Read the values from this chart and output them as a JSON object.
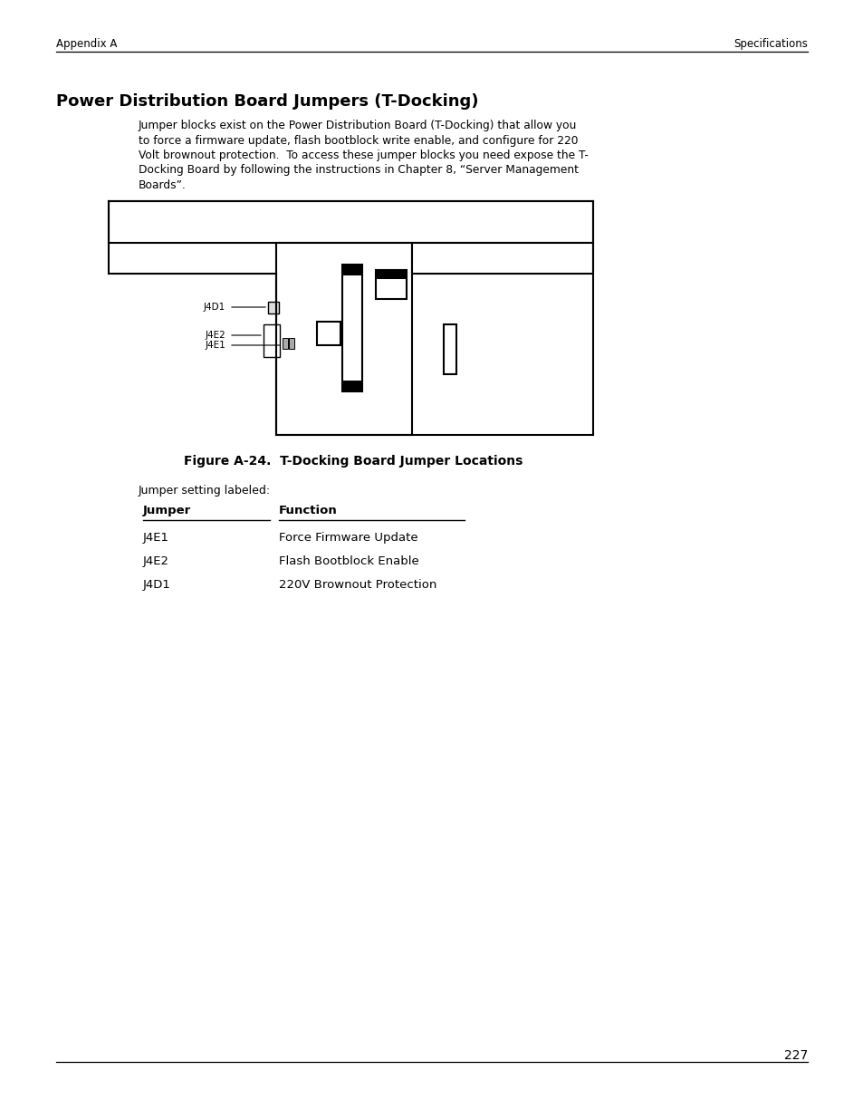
{
  "title": "Power Distribution Board Jumpers (T-Docking)",
  "header_left": "Appendix A",
  "header_right": "Specifications",
  "body_text": "Jumper blocks exist on the Power Distribution Board (T-Docking) that allow you\nto force a firmware update, flash bootblock write enable, and configure for 220\nVolt brownout protection.  To access these jumper blocks you need expose the T-\nDocking Board by following the instructions in Chapter 8, “Server Management\nBoards”.",
  "figure_caption": "Figure A-24.  T-Docking Board Jumper Locations",
  "jumper_setting_label": "Jumper setting labeled:",
  "table_headers": [
    "Jumper",
    "Function"
  ],
  "table_rows": [
    [
      "J4E1",
      "Force Firmware Update"
    ],
    [
      "J4E2",
      "Flash Bootblock Enable"
    ],
    [
      "J4D1",
      "220V Brownout Protection"
    ]
  ],
  "page_number": "227",
  "bg_color": "#ffffff",
  "text_color": "#000000"
}
